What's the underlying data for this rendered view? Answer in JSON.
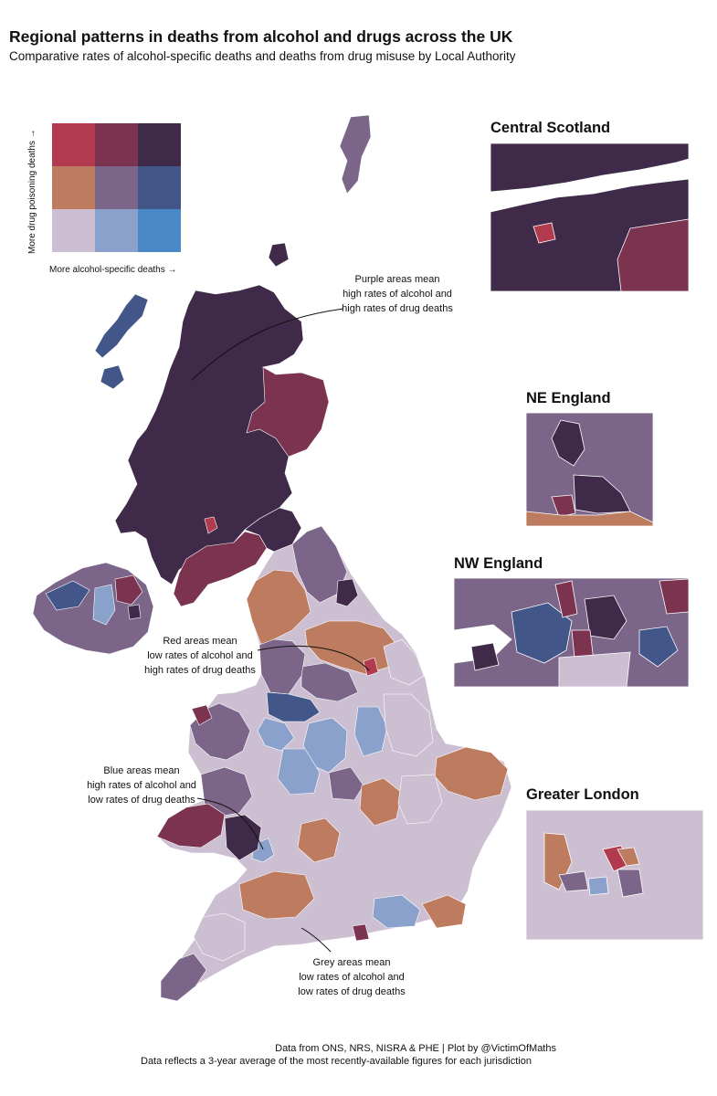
{
  "title": "Regional patterns in deaths from alcohol and drugs across the UK",
  "subtitle": "Comparative rates of alcohol-specific deaths and deaths from drug misuse by Local Authority",
  "legend": {
    "x_label": "More alcohol-specific deaths →",
    "y_label": "More drug poisoning deaths →",
    "grid_rows_top_to_bottom": [
      [
        "#b23a4e",
        "#7b3350",
        "#3f2a4a"
      ],
      [
        "#bd7b5f",
        "#7b6689",
        "#42568a"
      ],
      [
        "#cdbfd2",
        "#8aa1cc",
        "#4a88c7"
      ]
    ]
  },
  "insets": {
    "central_scotland": "Central Scotland",
    "ne_england": "NE England",
    "nw_england": "NW England",
    "greater_london": "Greater London"
  },
  "annotations": {
    "purple": [
      "Purple areas mean",
      "high rates of alcohol and",
      "high rates of drug deaths"
    ],
    "red": [
      "Red areas mean",
      "low rates of alcohol and",
      "high rates of drug deaths"
    ],
    "blue": [
      "Blue areas mean",
      "high rates of alcohol and",
      "low rates of drug deaths"
    ],
    "grey": [
      "Grey areas mean",
      "low rates of alcohol and",
      "low rates of drug deaths"
    ]
  },
  "footer": {
    "line1": "Data from ONS, NRS, NISRA & PHE | Plot by @VictimOfMaths",
    "line2": "Data reflects a 3-year average of the most recently-available figures for each jurisdiction"
  }
}
